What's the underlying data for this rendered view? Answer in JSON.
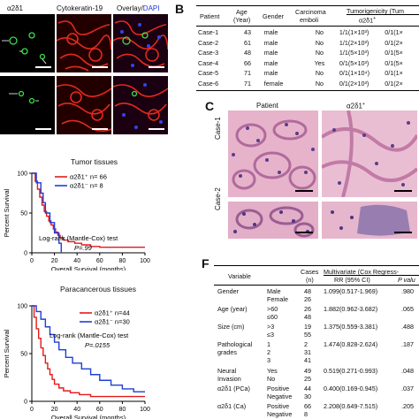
{
  "panel_labels": {
    "B": "B",
    "C": "C",
    "F": "F"
  },
  "panelA": {
    "col1": "α2δ1",
    "col2": "Cytokeratin-19",
    "col3_a": "Overlay/",
    "col3_b": "DAPI"
  },
  "panelB": {
    "headers": [
      "Patient",
      "Age",
      "(Year)",
      "Gender",
      "Carcinoma",
      "emboli",
      "Tumorigenicity (Tum",
      "α2δ1",
      "+"
    ],
    "rows": [
      [
        "Case-1",
        "43",
        "male",
        "No",
        "1/1(1×10³)",
        "0/1(1×"
      ],
      [
        "Case-2",
        "61",
        "male",
        "No",
        "1/1(2×10³)",
        "0/1(2×"
      ],
      [
        "Case-3",
        "48",
        "male",
        "No",
        "1/1(5×10³)",
        "0/1(5×"
      ],
      [
        "Case-4",
        "66",
        "male",
        "Yes",
        "0/1(5×10³)",
        "0/1(5×"
      ],
      [
        "Case-5",
        "71",
        "male",
        "No",
        "0/1(1×10⁴)",
        "0/1(1×"
      ],
      [
        "Case-6",
        "71",
        "female",
        "No",
        "0/1(2×10³)",
        "0/1(2×"
      ]
    ]
  },
  "panelC": {
    "col1": "Patient",
    "col2": "α2δ1",
    "col2_sup": "+",
    "row1": "Case-1",
    "row2": "Case-2"
  },
  "panelF": {
    "h_variable": "Variable",
    "h_cases1": "Cases",
    "h_cases2": "(n)",
    "h_multi": "Multivariate  (Cox Regress-",
    "h_rr": "RR (95% CI)",
    "h_p": "P valu",
    "rows": [
      {
        "var": "Gender",
        "grp": [
          "Male",
          "Female"
        ],
        "n": [
          "48",
          "26"
        ],
        "rr": "1.099(0.517-1.969)",
        "p": ".980"
      },
      {
        "var": "Age (year)",
        "grp": [
          ">60",
          "≤60"
        ],
        "n": [
          "26",
          "48"
        ],
        "rr": "1.882(0.962-3.682)",
        "p": ".065"
      },
      {
        "var": "Size (cm)",
        "grp": [
          ">3",
          "≤3"
        ],
        "n": [
          "19",
          "55"
        ],
        "rr": "1.375(0.559-3.381)",
        "p": ".488"
      },
      {
        "var": "Pathological",
        "var2": "grades",
        "grp": [
          "1",
          "2",
          "3"
        ],
        "n": [
          "2",
          "31",
          "41"
        ],
        "rr": "1.474(0.828-2.624)",
        "p": ".187"
      },
      {
        "var": "Neural",
        "var2": "Invasion",
        "grp": [
          "Yes",
          "No"
        ],
        "n": [
          "49",
          "25"
        ],
        "rr": "0.519(0.271-0.993)",
        "p": ".048"
      },
      {
        "var": "α2δ1 (PCa)",
        "grp": [
          "Positive",
          "Negative"
        ],
        "n": [
          "44",
          "30"
        ],
        "rr": "0.400(0.169-0.945)",
        "p": ".037"
      },
      {
        "var": "α2δ1 (Ca)",
        "grp": [
          "Positive",
          "Negative"
        ],
        "n": [
          "66",
          "8"
        ],
        "rr": "2.208(0.649-7.515)",
        "p": ".205"
      }
    ]
  },
  "chart_data": [
    {
      "type": "line",
      "title": "Tumor tissues",
      "xlabel": "Overall Survival (months)",
      "ylabel": "Percent Survival",
      "xlim": [
        0,
        100
      ],
      "ylim": [
        0,
        100
      ],
      "xticks": [
        0,
        20,
        40,
        60,
        80,
        100
      ],
      "yticks": [
        0,
        50,
        100
      ],
      "legend": [
        "α2δ1⁺ n= 66",
        "α2δ1⁻ n= 8"
      ],
      "annotation": [
        "Log-rank (Mantle-Cox) test",
        "P=.99"
      ],
      "series": [
        {
          "name": "α2δ1⁺ n= 66",
          "color": "#e41a1c",
          "x": [
            0,
            3,
            5,
            7,
            9,
            11,
            13,
            15,
            17,
            19,
            21,
            23,
            25,
            28,
            32,
            38,
            44,
            52,
            60,
            100
          ],
          "y": [
            100,
            90,
            80,
            70,
            60,
            52,
            46,
            40,
            35,
            30,
            26,
            22,
            19,
            16,
            14,
            12,
            10,
            8,
            7,
            7
          ]
        },
        {
          "name": "α2δ1⁻ n= 8",
          "color": "#1f3fd6",
          "x": [
            0,
            4,
            8,
            10,
            12,
            16,
            20,
            24,
            26
          ],
          "y": [
            100,
            88,
            75,
            63,
            50,
            38,
            25,
            12,
            0
          ]
        }
      ]
    },
    {
      "type": "line",
      "title": "Paracancerous tissues",
      "xlabel": "Overall Survival (months)",
      "ylabel": "Percent Survival",
      "xlim": [
        0,
        100
      ],
      "ylim": [
        0,
        100
      ],
      "xticks": [
        0,
        20,
        40,
        60,
        80,
        100
      ],
      "yticks": [
        0,
        50,
        100
      ],
      "legend": [
        "α2δ1⁺ n=44",
        "α2δ1⁻ n=30"
      ],
      "annotation": [
        "Log-rank (Mantle-Cox) test",
        "P=.0155"
      ],
      "series": [
        {
          "name": "α2δ1⁺ n=44",
          "color": "#e41a1c",
          "x": [
            0,
            2,
            4,
            6,
            8,
            10,
            12,
            14,
            16,
            18,
            20,
            24,
            28,
            34,
            42,
            52,
            100
          ],
          "y": [
            100,
            88,
            76,
            66,
            56,
            48,
            40,
            34,
            28,
            23,
            18,
            14,
            11,
            9,
            7,
            5,
            5
          ]
        },
        {
          "name": "α2δ1⁻ n=30",
          "color": "#1f3fd6",
          "x": [
            0,
            4,
            8,
            12,
            16,
            20,
            24,
            30,
            36,
            44,
            52,
            60,
            70,
            80,
            90,
            100
          ],
          "y": [
            100,
            94,
            86,
            78,
            70,
            62,
            54,
            46,
            40,
            34,
            28,
            22,
            17,
            13,
            10,
            10
          ]
        }
      ]
    }
  ]
}
